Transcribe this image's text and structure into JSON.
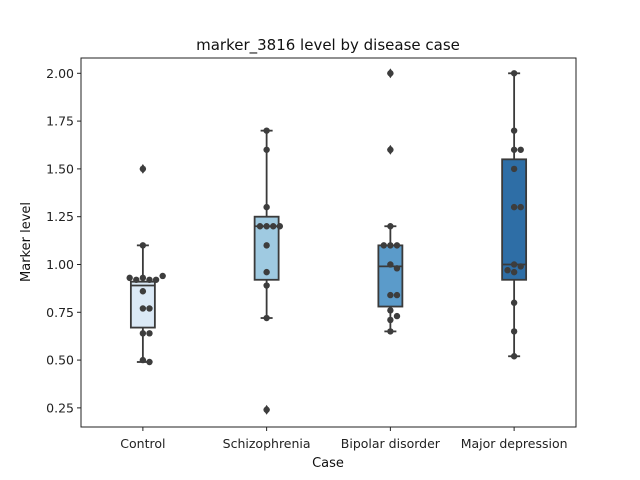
{
  "chart_data": {
    "type": "box",
    "title": "marker_3816 level by disease case",
    "xlabel": "Case",
    "ylabel": "Marker level",
    "ylim": [
      0.15,
      2.08
    ],
    "yticks": [
      "0.25",
      "0.50",
      "0.75",
      "1.00",
      "1.25",
      "1.50",
      "1.75",
      "2.00"
    ],
    "categories": [
      "Control",
      "Schizophrenia",
      "Bipolar disorder",
      "Major depression"
    ],
    "colors": [
      "#dbe9f6",
      "#9fcae1",
      "#5b9bca",
      "#2e6ea6"
    ],
    "grid": false,
    "boxes": [
      {
        "q1": 0.67,
        "median": 0.89,
        "q3": 0.91,
        "whisker_low": 0.49,
        "whisker_high": 1.1,
        "outliers": [
          1.5
        ]
      },
      {
        "q1": 0.92,
        "median": 1.2,
        "q3": 1.25,
        "whisker_low": 0.72,
        "whisker_high": 1.7,
        "outliers": [
          0.24
        ]
      },
      {
        "q1": 0.78,
        "median": 0.99,
        "q3": 1.1,
        "whisker_low": 0.65,
        "whisker_high": 1.2,
        "outliers": [
          1.6,
          2.0
        ]
      },
      {
        "q1": 0.92,
        "median": 1.0,
        "q3": 1.55,
        "whisker_low": 0.52,
        "whisker_high": 2.0,
        "outliers": []
      }
    ],
    "points": [
      [
        0.93,
        0.92,
        0.92,
        0.92,
        0.93,
        0.94,
        0.86,
        0.77,
        0.77,
        0.64,
        0.64,
        0.5,
        0.49,
        1.1,
        1.5
      ],
      [
        1.7,
        1.6,
        1.3,
        1.2,
        1.2,
        1.2,
        1.2,
        1.1,
        0.96,
        0.89,
        0.72,
        0.24
      ],
      [
        2.0,
        1.6,
        1.2,
        1.1,
        1.1,
        1.1,
        1.0,
        0.98,
        0.84,
        0.84,
        0.76,
        0.73,
        0.71,
        0.65
      ],
      [
        2.0,
        1.7,
        1.6,
        1.6,
        1.5,
        1.3,
        1.3,
        1.0,
        0.99,
        0.97,
        0.96,
        0.8,
        0.65,
        0.52
      ]
    ]
  }
}
